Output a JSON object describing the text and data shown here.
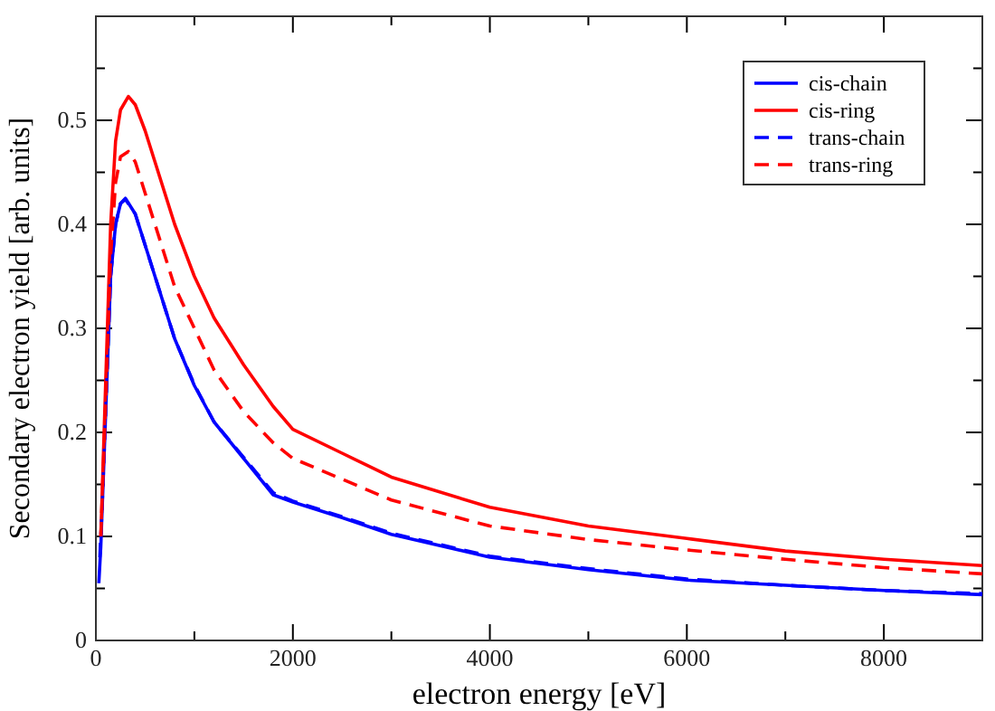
{
  "chart_data": {
    "type": "line",
    "xlabel": "electron energy [eV]",
    "ylabel": "Secondary electron yield [arb. units]",
    "xlim": [
      0,
      9000
    ],
    "ylim": [
      0,
      0.6
    ],
    "xticks": [
      0,
      {
        "value": 1000,
        "label": null
      },
      2000,
      {
        "value": 3000,
        "label": null
      },
      4000,
      {
        "value": 5000,
        "label": null
      },
      6000,
      {
        "value": 7000,
        "label": null
      },
      8000
    ],
    "yticks": [
      0,
      {
        "value": 0.05,
        "label": null
      },
      0.1,
      {
        "value": 0.15,
        "label": null
      },
      0.2,
      {
        "value": 0.25,
        "label": null
      },
      0.3,
      {
        "value": 0.35,
        "label": null
      },
      0.4,
      {
        "value": 0.45,
        "label": null
      },
      0.5,
      {
        "value": 0.55,
        "label": null
      }
    ],
    "grid": false,
    "legend": "top right",
    "marker": "none",
    "series": [
      {
        "name": "cis-chain",
        "color": "#0000ff",
        "line_style": "solid",
        "x": [
          30,
          50,
          100,
          150,
          200,
          250,
          300,
          400,
          500,
          600,
          800,
          1000,
          1200,
          1500,
          1800,
          2000,
          2500,
          3000,
          4000,
          5000,
          6000,
          7000,
          8000,
          9000
        ],
        "values": [
          0.055,
          0.09,
          0.22,
          0.35,
          0.4,
          0.42,
          0.425,
          0.41,
          0.38,
          0.35,
          0.29,
          0.245,
          0.21,
          0.175,
          0.14,
          0.133,
          0.118,
          0.102,
          0.08,
          0.068,
          0.058,
          0.053,
          0.048,
          0.044
        ]
      },
      {
        "name": "cis-ring",
        "color": "#ff0000",
        "line_style": "solid",
        "x": [
          50,
          100,
          150,
          200,
          250,
          330,
          400,
          500,
          600,
          800,
          1000,
          1200,
          1500,
          1800,
          2000,
          2500,
          3000,
          4000,
          5000,
          6000,
          7000,
          8000,
          9000
        ],
        "values": [
          0.1,
          0.25,
          0.4,
          0.48,
          0.51,
          0.523,
          0.515,
          0.49,
          0.46,
          0.4,
          0.35,
          0.31,
          0.265,
          0.225,
          0.203,
          0.18,
          0.157,
          0.128,
          0.11,
          0.098,
          0.086,
          0.078,
          0.072
        ]
      },
      {
        "name": "trans-chain",
        "color": "#0000ff",
        "line_style": "dashed",
        "x": [
          40,
          60,
          100,
          150,
          200,
          250,
          300,
          400,
          500,
          600,
          800,
          1000,
          1200,
          1500,
          1800,
          2000,
          2500,
          3000,
          4000,
          5000,
          6000,
          7000,
          8000,
          9000
        ],
        "values": [
          0.08,
          0.12,
          0.22,
          0.35,
          0.4,
          0.42,
          0.424,
          0.41,
          0.38,
          0.35,
          0.29,
          0.246,
          0.21,
          0.176,
          0.142,
          0.134,
          0.119,
          0.103,
          0.081,
          0.069,
          0.059,
          0.053,
          0.048,
          0.045
        ]
      },
      {
        "name": "trans-ring",
        "color": "#ff0000",
        "line_style": "dashed",
        "x": [
          50,
          100,
          150,
          200,
          250,
          330,
          400,
          500,
          600,
          800,
          1000,
          1200,
          1500,
          1800,
          2000,
          2500,
          3000,
          4000,
          5000,
          6000,
          7000,
          8000,
          9000
        ],
        "values": [
          0.1,
          0.23,
          0.37,
          0.44,
          0.465,
          0.47,
          0.46,
          0.43,
          0.4,
          0.34,
          0.3,
          0.26,
          0.22,
          0.19,
          0.175,
          0.155,
          0.135,
          0.11,
          0.097,
          0.087,
          0.078,
          0.07,
          0.064
        ]
      }
    ]
  }
}
